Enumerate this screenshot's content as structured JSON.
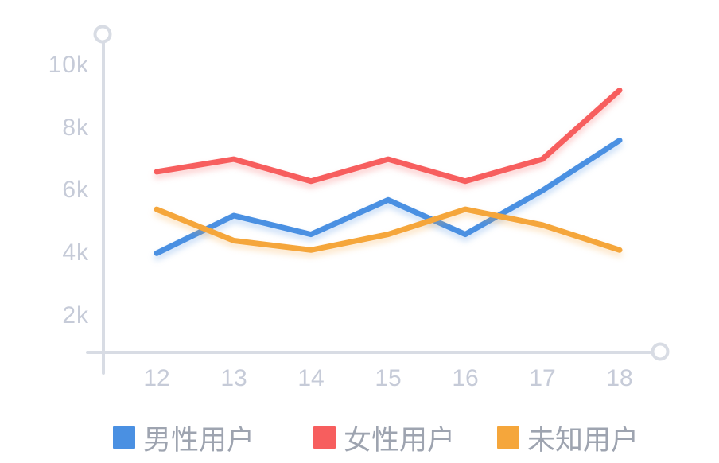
{
  "chart_data": {
    "type": "line",
    "categories": [
      "12",
      "13",
      "14",
      "15",
      "16",
      "17",
      "18"
    ],
    "series": [
      {
        "key": "male-users",
        "name": "男性用户",
        "color": "#4a90e2",
        "values": [
          4000,
          5200,
          4600,
          5700,
          4600,
          6000,
          7600
        ]
      },
      {
        "key": "female-users",
        "name": "女性用户",
        "color": "#f75e5e",
        "values": [
          6600,
          7000,
          6300,
          7000,
          6300,
          7000,
          9200
        ]
      },
      {
        "key": "unknown-users",
        "name": "未知用户",
        "color": "#f5a63b",
        "values": [
          5400,
          4400,
          4100,
          4600,
          5400,
          4900,
          4100
        ]
      }
    ],
    "title": "",
    "xlabel": "",
    "ylabel": "",
    "y_axis": {
      "ticks": [
        2000,
        4000,
        6000,
        8000,
        10000
      ],
      "tick_labels": [
        "2k",
        "4k",
        "6k",
        "8k",
        "10k"
      ]
    },
    "grid": false,
    "legend_position": "bottom"
  },
  "colors": {
    "axis": "#d8dce4",
    "tick_text": "#c6cbd8",
    "legend_text": "#9ea4b0",
    "background": "#ffffff"
  }
}
